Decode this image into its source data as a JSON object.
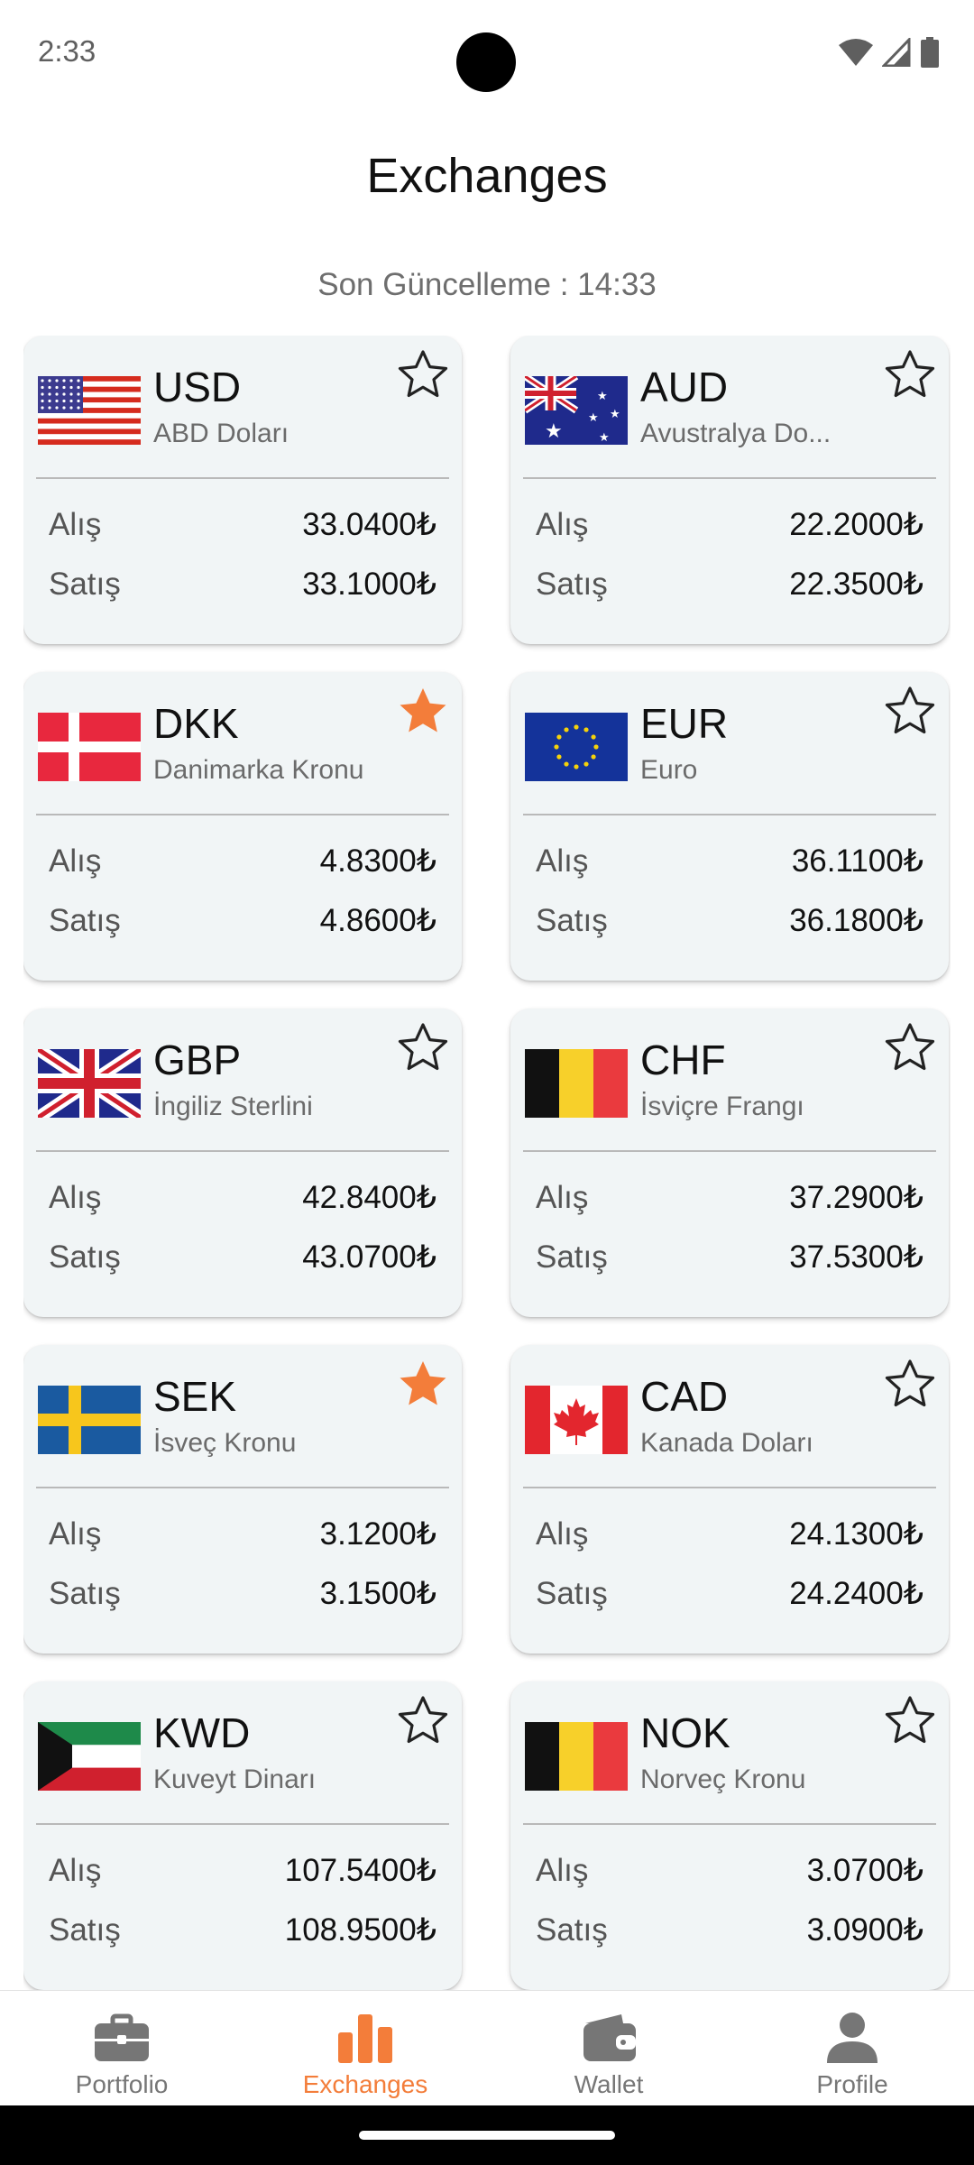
{
  "status": {
    "time": "2:33"
  },
  "header": {
    "title": "Exchanges"
  },
  "last_update": "Son Güncelleme : 14:33",
  "labels": {
    "buy": "Alış",
    "sell": "Satış"
  },
  "colors": {
    "accent": "#f37d3a",
    "card_bg": "#f1f5f6",
    "muted": "#767676"
  },
  "currencies": [
    {
      "code": "USD",
      "name": "ABD Doları",
      "buy": "33.0400₺",
      "sell": "33.1000₺",
      "favorite": false,
      "flag": "us-flag"
    },
    {
      "code": "AUD",
      "name": "Avustralya Do...",
      "buy": "22.2000₺",
      "sell": "22.3500₺",
      "favorite": false,
      "flag": "au-flag"
    },
    {
      "code": "DKK",
      "name": "Danimarka Kronu",
      "buy": "4.8300₺",
      "sell": "4.8600₺",
      "favorite": true,
      "flag": "dk-flag"
    },
    {
      "code": "EUR",
      "name": "Euro",
      "buy": "36.1100₺",
      "sell": "36.1800₺",
      "favorite": false,
      "flag": "eu-flag"
    },
    {
      "code": "GBP",
      "name": "İngiliz Sterlini",
      "buy": "42.8400₺",
      "sell": "43.0700₺",
      "favorite": false,
      "flag": "gb-flag"
    },
    {
      "code": "CHF",
      "name": "İsviçre Frangı",
      "buy": "37.2900₺",
      "sell": "37.5300₺",
      "favorite": false,
      "flag": "be-flag"
    },
    {
      "code": "SEK",
      "name": "İsveç Kronu",
      "buy": "3.1200₺",
      "sell": "3.1500₺",
      "favorite": true,
      "flag": "se-flag"
    },
    {
      "code": "CAD",
      "name": "Kanada Doları",
      "buy": "24.1300₺",
      "sell": "24.2400₺",
      "favorite": false,
      "flag": "ca-flag"
    },
    {
      "code": "KWD",
      "name": "Kuveyt Dinarı",
      "buy": "107.5400₺",
      "sell": "108.9500₺",
      "favorite": false,
      "flag": "kw-flag"
    },
    {
      "code": "NOK",
      "name": "Norveç Kronu",
      "buy": "3.0700₺",
      "sell": "3.0900₺",
      "favorite": false,
      "flag": "be-flag"
    }
  ],
  "nav": [
    {
      "label": "Portfolio",
      "icon": "briefcase-icon",
      "active": false
    },
    {
      "label": "Exchanges",
      "icon": "bar-chart-icon",
      "active": true
    },
    {
      "label": "Wallet",
      "icon": "wallet-icon",
      "active": false
    },
    {
      "label": "Profile",
      "icon": "person-icon",
      "active": false
    }
  ]
}
